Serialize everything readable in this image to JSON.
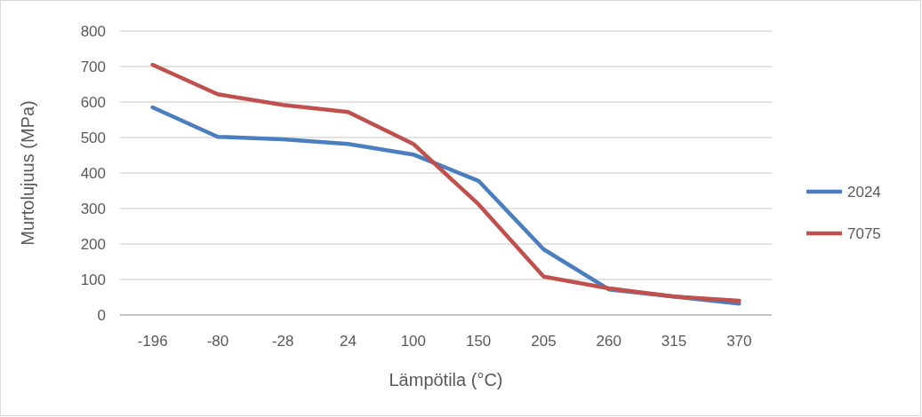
{
  "chart_data": {
    "type": "line",
    "xlabel": "Lämpötila (°C)",
    "ylabel": "Murtolujuus (MPa)",
    "categories": [
      "-196",
      "-80",
      "-28",
      "24",
      "100",
      "150",
      "205",
      "260",
      "315",
      "370"
    ],
    "series": [
      {
        "name": "2024",
        "color": "#4a7ebf",
        "values": [
          585,
          502,
          495,
          482,
          452,
          378,
          185,
          72,
          52,
          32
        ]
      },
      {
        "name": "7075",
        "color": "#c0504d",
        "values": [
          705,
          622,
          592,
          572,
          482,
          312,
          108,
          75,
          52,
          40
        ]
      }
    ],
    "ylim": [
      0,
      800
    ],
    "yticks": [
      0,
      100,
      200,
      300,
      400,
      500,
      600,
      700,
      800
    ],
    "grid": "y",
    "legend": "right",
    "marker": "none",
    "line_style": "solid"
  }
}
